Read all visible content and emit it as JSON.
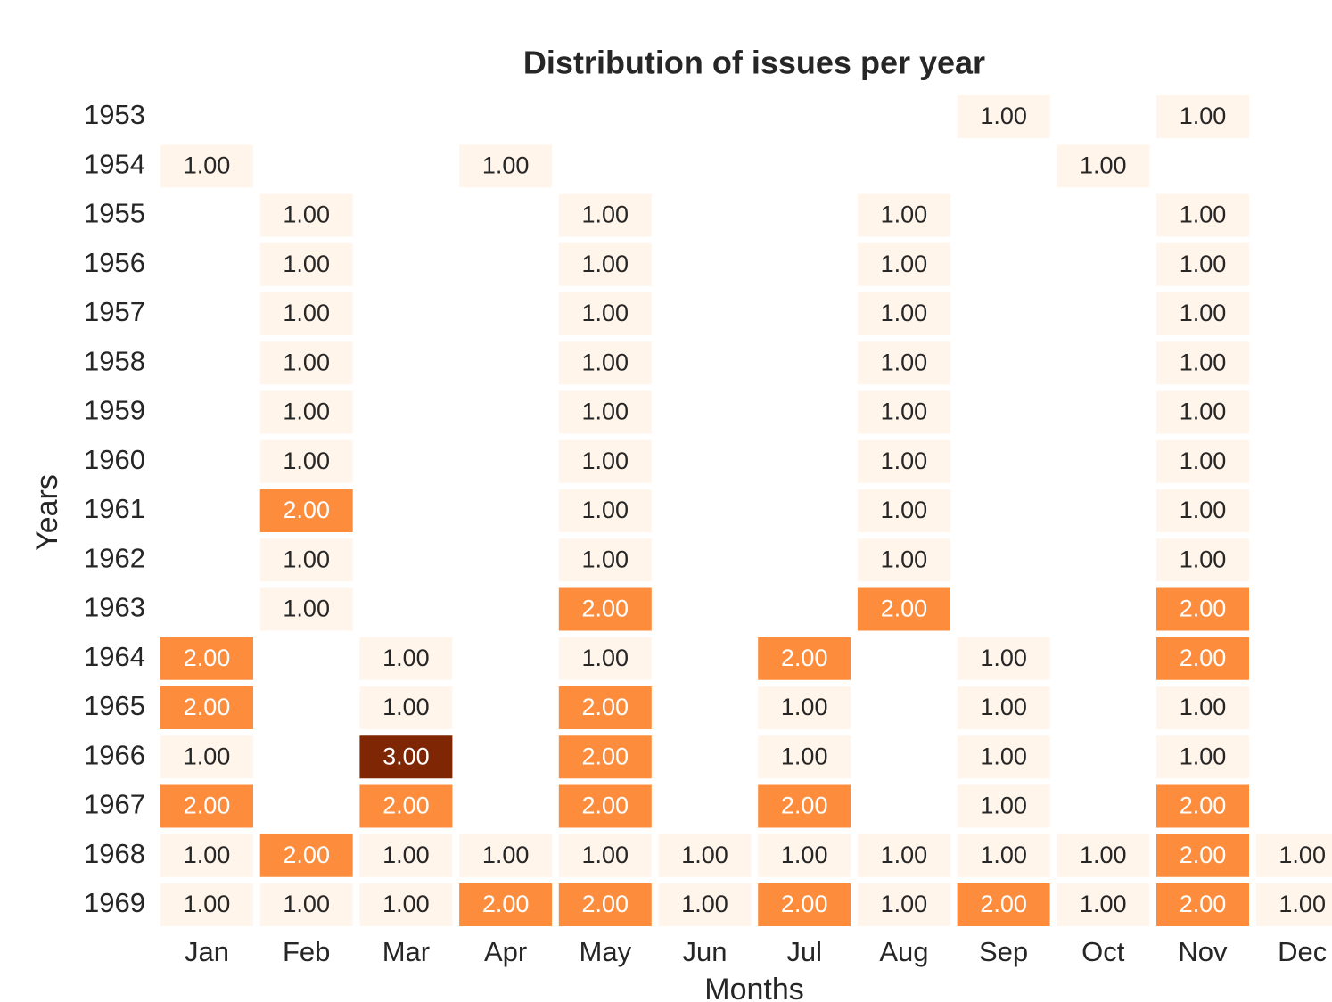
{
  "chart_data": {
    "type": "heatmap",
    "title": "Distribution of issues per year",
    "x_label": "Months",
    "y_label": "Years",
    "x": [
      "Jan",
      "Feb",
      "Mar",
      "Apr",
      "May",
      "Jun",
      "Jul",
      "Aug",
      "Sep",
      "Oct",
      "Nov",
      "Dec"
    ],
    "y": [
      "1953",
      "1954",
      "1955",
      "1956",
      "1957",
      "1958",
      "1959",
      "1960",
      "1961",
      "1962",
      "1963",
      "1964",
      "1965",
      "1966",
      "1967",
      "1968",
      "1969"
    ],
    "colorscale": [
      [
        1,
        "#fff5eb"
      ],
      [
        2,
        "#fd8d3c"
      ],
      [
        3,
        "#7f2704"
      ]
    ],
    "values": [
      [
        null,
        null,
        null,
        null,
        null,
        null,
        null,
        null,
        1,
        null,
        1,
        null
      ],
      [
        1,
        null,
        null,
        1,
        null,
        null,
        null,
        null,
        null,
        1,
        null,
        null
      ],
      [
        null,
        1,
        null,
        null,
        1,
        null,
        null,
        1,
        null,
        null,
        1,
        null
      ],
      [
        null,
        1,
        null,
        null,
        1,
        null,
        null,
        1,
        null,
        null,
        1,
        null
      ],
      [
        null,
        1,
        null,
        null,
        1,
        null,
        null,
        1,
        null,
        null,
        1,
        null
      ],
      [
        null,
        1,
        null,
        null,
        1,
        null,
        null,
        1,
        null,
        null,
        1,
        null
      ],
      [
        null,
        1,
        null,
        null,
        1,
        null,
        null,
        1,
        null,
        null,
        1,
        null
      ],
      [
        null,
        1,
        null,
        null,
        1,
        null,
        null,
        1,
        null,
        null,
        1,
        null
      ],
      [
        null,
        2,
        null,
        null,
        1,
        null,
        null,
        1,
        null,
        null,
        1,
        null
      ],
      [
        null,
        1,
        null,
        null,
        1,
        null,
        null,
        1,
        null,
        null,
        1,
        null
      ],
      [
        null,
        1,
        null,
        null,
        2,
        null,
        null,
        2,
        null,
        null,
        2,
        null
      ],
      [
        2,
        null,
        1,
        null,
        1,
        null,
        2,
        null,
        1,
        null,
        2,
        null
      ],
      [
        2,
        null,
        1,
        null,
        2,
        null,
        1,
        null,
        1,
        null,
        1,
        null
      ],
      [
        1,
        null,
        3,
        null,
        2,
        null,
        1,
        null,
        1,
        null,
        1,
        null
      ],
      [
        2,
        null,
        2,
        null,
        2,
        null,
        2,
        null,
        1,
        null,
        2,
        null
      ],
      [
        1,
        2,
        1,
        1,
        1,
        1,
        1,
        1,
        1,
        1,
        2,
        1
      ],
      [
        1,
        1,
        1,
        2,
        2,
        1,
        2,
        1,
        2,
        1,
        2,
        1
      ]
    ],
    "value_labels": [
      [
        null,
        null,
        null,
        null,
        null,
        null,
        null,
        null,
        "1.00",
        null,
        "1.00",
        null
      ],
      [
        "1.00",
        null,
        null,
        "1.00",
        null,
        null,
        null,
        null,
        null,
        "1.00",
        null,
        null
      ],
      [
        null,
        "1.00",
        null,
        null,
        "1.00",
        null,
        null,
        "1.00",
        null,
        null,
        "1.00",
        null
      ],
      [
        null,
        "1.00",
        null,
        null,
        "1.00",
        null,
        null,
        "1.00",
        null,
        null,
        "1.00",
        null
      ],
      [
        null,
        "1.00",
        null,
        null,
        "1.00",
        null,
        null,
        "1.00",
        null,
        null,
        "1.00",
        null
      ],
      [
        null,
        "1.00",
        null,
        null,
        "1.00",
        null,
        null,
        "1.00",
        null,
        null,
        "1.00",
        null
      ],
      [
        null,
        "1.00",
        null,
        null,
        "1.00",
        null,
        null,
        "1.00",
        null,
        null,
        "1.00",
        null
      ],
      [
        null,
        "1.00",
        null,
        null,
        "1.00",
        null,
        null,
        "1.00",
        null,
        null,
        "1.00",
        null
      ],
      [
        null,
        "2.00",
        null,
        null,
        "1.00",
        null,
        null,
        "1.00",
        null,
        null,
        "1.00",
        null
      ],
      [
        null,
        "1.00",
        null,
        null,
        "1.00",
        null,
        null,
        "1.00",
        null,
        null,
        "1.00",
        null
      ],
      [
        null,
        "1.00",
        null,
        null,
        "2.00",
        null,
        null,
        "2.00",
        null,
        null,
        "2.00",
        null
      ],
      [
        "2.00",
        null,
        "1.00",
        null,
        "1.00",
        null,
        "2.00",
        null,
        "1.00",
        null,
        "2.00",
        null
      ],
      [
        "2.00",
        null,
        "1.00",
        null,
        "2.00",
        null,
        "1.00",
        null,
        "1.00",
        null,
        "1.00",
        null
      ],
      [
        "1.00",
        null,
        "3.00",
        null,
        "2.00",
        null,
        "1.00",
        null,
        "1.00",
        null,
        "1.00",
        null
      ],
      [
        "2.00",
        null,
        "2.00",
        null,
        "2.00",
        null,
        "2.00",
        null,
        "1.00",
        null,
        "2.00",
        null
      ],
      [
        "1.00",
        "2.00",
        "1.00",
        "1.00",
        "1.00",
        "1.00",
        "1.00",
        "1.00",
        "1.00",
        "1.00",
        "2.00",
        "1.00"
      ],
      [
        "1.00",
        "1.00",
        "1.00",
        "2.00",
        "2.00",
        "1.00",
        "2.00",
        "1.00",
        "2.00",
        "1.00",
        "2.00",
        "1.00"
      ]
    ]
  }
}
